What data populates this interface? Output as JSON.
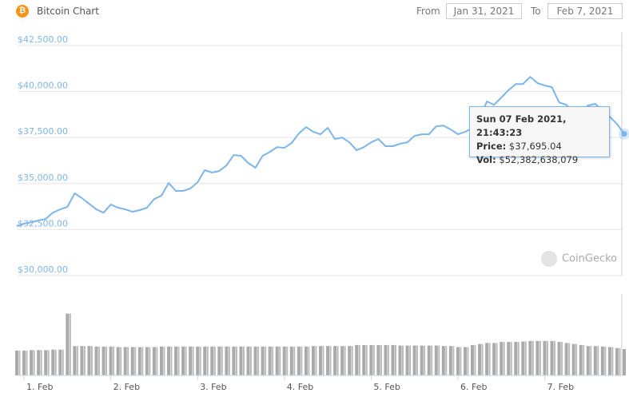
{
  "header": {
    "title": "Bitcoin Chart",
    "coin_icon": "bitcoin-icon",
    "from_label": "From",
    "from_value": "Jan 31, 2021",
    "to_label": "To",
    "to_value": "Feb 7, 2021"
  },
  "colors": {
    "line": "#7cb5ec",
    "axis_label": "#7cb5ec",
    "volume": "#aaaaaa",
    "bitcoin": "#f7931a"
  },
  "tooltip": {
    "date": "Sun 07 Feb 2021, 21:43:23",
    "price_label": "Price:",
    "price": "$37,695.04",
    "vol_label": "Vol:",
    "vol": "$52,382,638,079"
  },
  "watermark": "CoinGecko",
  "chart_data": {
    "type": "line",
    "ylim": [
      30000,
      42500
    ],
    "y_ticks": [
      "$42,500.00",
      "$40,000.00",
      "$37,500.00",
      "$35,000.00",
      "$32,500.00",
      "$30,000.00"
    ],
    "y_tick_values": [
      42500,
      40000,
      37500,
      35000,
      32500,
      30000
    ],
    "x_ticks": [
      "1. Feb",
      "2. Feb",
      "3. Feb",
      "4. Feb",
      "5. Feb",
      "6. Feb",
      "7. Feb"
    ],
    "grid": true,
    "x": [
      "Jan 31 22:00",
      "Feb 1 00:00",
      "Feb 1 02:00",
      "Feb 1 04:00",
      "Feb 1 06:00",
      "Feb 1 08:00",
      "Feb 1 10:00",
      "Feb 1 12:00",
      "Feb 1 14:00",
      "Feb 1 16:00",
      "Feb 1 18:00",
      "Feb 1 20:00",
      "Feb 1 22:00",
      "Feb 2 00:00",
      "Feb 2 02:00",
      "Feb 2 04:00",
      "Feb 2 06:00",
      "Feb 2 08:00",
      "Feb 2 10:00",
      "Feb 2 12:00",
      "Feb 2 14:00",
      "Feb 2 16:00",
      "Feb 2 18:00",
      "Feb 2 20:00",
      "Feb 2 22:00",
      "Feb 3 00:00",
      "Feb 3 02:00",
      "Feb 3 04:00",
      "Feb 3 06:00",
      "Feb 3 08:00",
      "Feb 3 10:00",
      "Feb 3 12:00",
      "Feb 3 14:00",
      "Feb 3 16:00",
      "Feb 3 18:00",
      "Feb 3 20:00",
      "Feb 3 22:00",
      "Feb 4 00:00",
      "Feb 4 02:00",
      "Feb 4 04:00",
      "Feb 4 06:00",
      "Feb 4 08:00",
      "Feb 4 10:00",
      "Feb 4 12:00",
      "Feb 4 14:00",
      "Feb 4 16:00",
      "Feb 4 18:00",
      "Feb 4 20:00",
      "Feb 4 22:00",
      "Feb 5 00:00",
      "Feb 5 02:00",
      "Feb 5 04:00",
      "Feb 5 06:00",
      "Feb 5 08:00",
      "Feb 5 10:00",
      "Feb 5 12:00",
      "Feb 5 14:00",
      "Feb 5 16:00",
      "Feb 5 18:00",
      "Feb 5 20:00",
      "Feb 5 22:00",
      "Feb 6 00:00",
      "Feb 6 02:00",
      "Feb 6 04:00",
      "Feb 6 06:00",
      "Feb 6 08:00",
      "Feb 6 10:00",
      "Feb 6 12:00",
      "Feb 6 14:00",
      "Feb 6 16:00",
      "Feb 6 18:00",
      "Feb 6 20:00",
      "Feb 6 22:00",
      "Feb 7 00:00",
      "Feb 7 02:00",
      "Feb 7 04:00",
      "Feb 7 06:00",
      "Feb 7 08:00",
      "Feb 7 10:00",
      "Feb 7 12:00",
      "Feb 7 14:00",
      "Feb 7 16:00",
      "Feb 7 18:00",
      "Feb 7 20:00",
      "Feb 7 21:43"
    ],
    "price": [
      32690,
      32820,
      32900,
      32990,
      33080,
      33420,
      33600,
      33730,
      34470,
      34210,
      33900,
      33600,
      33420,
      33860,
      33690,
      33600,
      33470,
      33560,
      33690,
      34160,
      34340,
      35030,
      34600,
      34600,
      34730,
      35070,
      35730,
      35600,
      35680,
      35990,
      36550,
      36510,
      36120,
      35860,
      36510,
      36720,
      36980,
      36940,
      37200,
      37720,
      38070,
      37810,
      37680,
      38030,
      37420,
      37500,
      37240,
      36810,
      36980,
      37240,
      37420,
      37030,
      37030,
      37160,
      37240,
      37590,
      37680,
      37680,
      38110,
      38150,
      37940,
      37680,
      37810,
      38030,
      38460,
      39460,
      39280,
      39670,
      40070,
      40410,
      40410,
      40800,
      40460,
      40330,
      40240,
      39410,
      39280,
      38850,
      38890,
      39240,
      39330,
      38940,
      38630,
      38240,
      37695
    ],
    "volume_billion_usd": [
      49,
      49,
      50,
      50,
      50,
      51,
      51,
      122,
      58,
      58,
      58,
      57,
      57,
      57,
      56,
      56,
      56,
      56,
      56,
      56,
      57,
      57,
      57,
      57,
      57,
      57,
      57,
      57,
      57,
      57,
      57,
      57,
      57,
      57,
      57,
      57,
      57,
      57,
      57,
      57,
      57,
      58,
      58,
      58,
      58,
      58,
      58,
      60,
      60,
      60,
      60,
      60,
      60,
      59,
      59,
      59,
      59,
      59,
      59,
      58,
      58,
      56,
      56,
      60,
      62,
      64,
      64,
      66,
      66,
      66,
      67,
      68,
      68,
      68,
      68,
      66,
      64,
      62,
      60,
      58,
      58,
      57,
      56,
      54,
      52
    ]
  }
}
